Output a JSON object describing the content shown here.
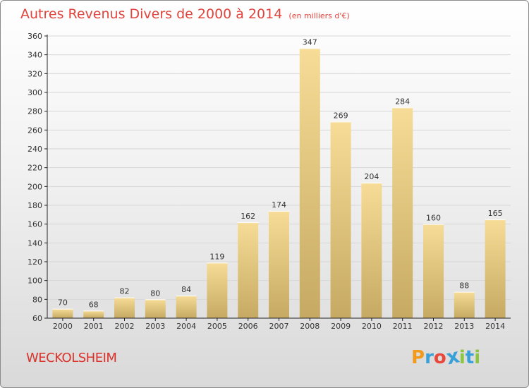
{
  "header": {
    "title": "Autres Revenus Divers de 2000 à 2014",
    "unit_note": "(en milliers d'€)"
  },
  "footer": {
    "location": "WECKOLSHEIM",
    "logo_letters": [
      "P",
      "r",
      "o",
      "x",
      "i",
      "t",
      "i"
    ],
    "logo_colors": [
      "#f29a1d",
      "#3aa0d8",
      "#e8473b",
      "#3aa0d8",
      "#8cc63f",
      "#3aa0d8",
      "#8cc63f"
    ]
  },
  "colors": {
    "title": "#e0443c",
    "bar_light": "#f6dc96",
    "bar_dark": "#c6aa64",
    "grid": "#d7d7d7",
    "axis": "#222222",
    "text": "#333333"
  },
  "chart_data": {
    "type": "bar",
    "title": "Autres Revenus Divers de 2000 à 2014",
    "xlabel": "",
    "ylabel": "",
    "categories": [
      "2000",
      "2001",
      "2002",
      "2003",
      "2004",
      "2005",
      "2006",
      "2007",
      "2008",
      "2009",
      "2010",
      "2011",
      "2012",
      "2013",
      "2014"
    ],
    "values": [
      70,
      68,
      82,
      80,
      84,
      119,
      162,
      174,
      347,
      269,
      204,
      284,
      160,
      88,
      165
    ],
    "ylim": [
      60,
      360
    ],
    "yticks": [
      60,
      80,
      100,
      120,
      140,
      160,
      180,
      200,
      220,
      240,
      260,
      280,
      300,
      320,
      340,
      360
    ],
    "grid": true,
    "data_labels": true
  }
}
